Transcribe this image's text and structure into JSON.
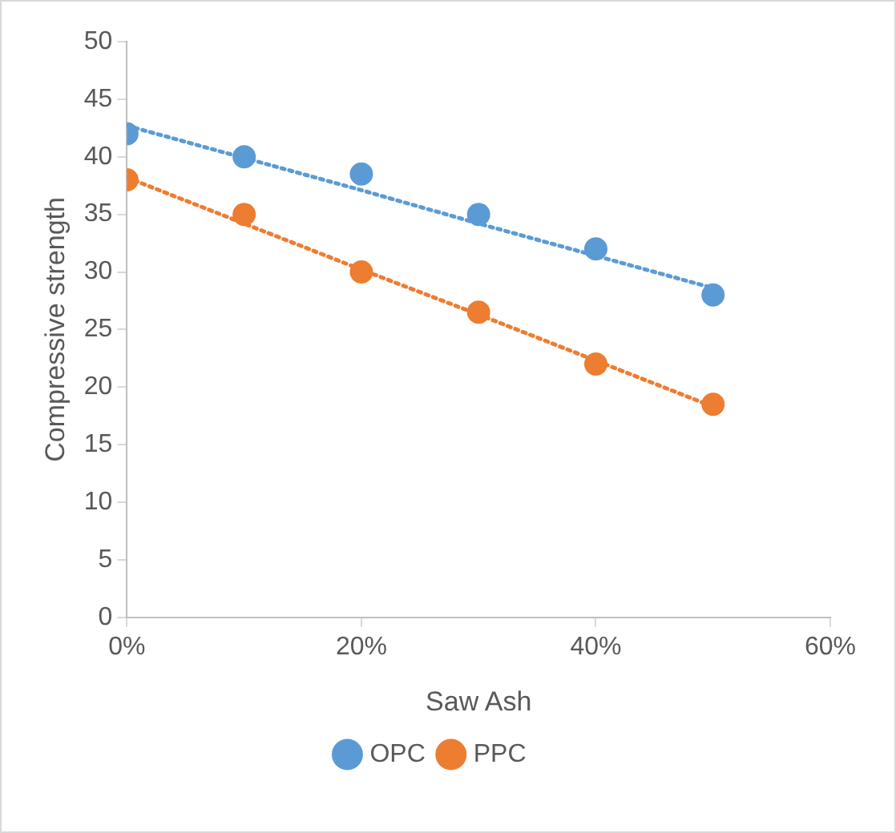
{
  "chart_data": {
    "type": "scatter",
    "xlabel": "Saw Ash",
    "ylabel": "Compressive strength",
    "x": [
      0,
      10,
      20,
      30,
      40,
      50
    ],
    "xlim": [
      0,
      60
    ],
    "xticks": [
      {
        "value": 0,
        "label": "0%"
      },
      {
        "value": 20,
        "label": "20%"
      },
      {
        "value": 40,
        "label": "40%"
      },
      {
        "value": 60,
        "label": "60%"
      }
    ],
    "ylim": [
      0,
      50
    ],
    "yticks": [
      0,
      5,
      10,
      15,
      20,
      25,
      30,
      35,
      40,
      45,
      50
    ],
    "legend": "bottom",
    "marker": "circle",
    "series": [
      {
        "name": "OPC",
        "color": "#5b9bd5",
        "values": [
          42,
          40,
          38.5,
          35,
          32,
          28
        ]
      },
      {
        "name": "PPC",
        "color": "#ed7d31",
        "values": [
          38,
          35,
          30,
          26.5,
          22,
          18.5
        ]
      },
      {
        "type": "line",
        "color": "#5b9bd5",
        "values": [
          42.7,
          39.9,
          37.1,
          34.2,
          31.4,
          28.6
        ],
        "line_style": "dotted",
        "marker": "none"
      },
      {
        "type": "line",
        "color": "#ed7d31",
        "values": [
          38.2,
          34.2,
          30.2,
          26.3,
          22.3,
          18.3
        ],
        "line_style": "dotted",
        "marker": "none"
      }
    ]
  }
}
